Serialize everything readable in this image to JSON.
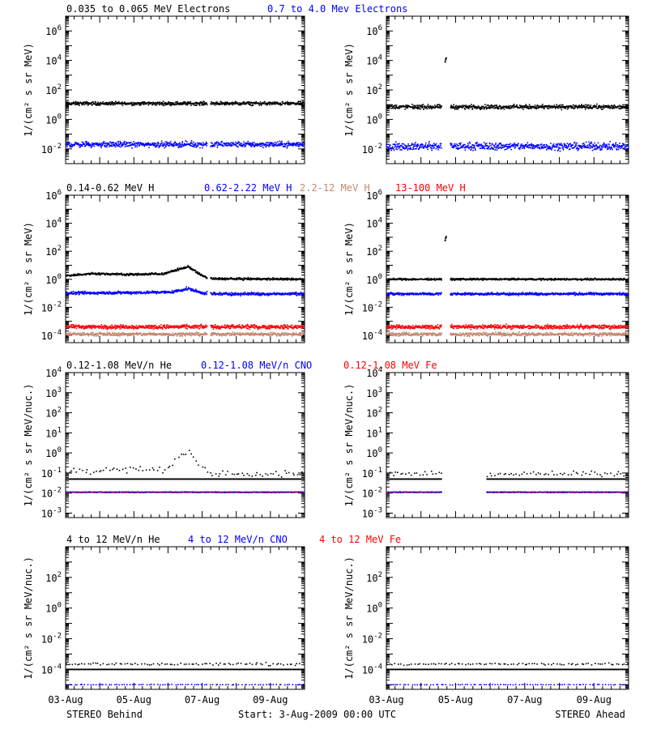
{
  "colors": {
    "black": "#000000",
    "blue": "#0000ff",
    "tan": "#c08a70",
    "red": "#ff0000"
  },
  "footer": {
    "left": "STEREO Behind",
    "center": "Start:  3-Aug-2009 00:00 UTC",
    "right": "STEREO Ahead"
  },
  "chart_data": [
    {
      "type": "scatter",
      "y_scale": "log",
      "ylabel": "1/(cm² s sr MeV)",
      "legend": [
        {
          "label": "0.035 to 0.065 MeV Electrons",
          "color": "#000000"
        },
        {
          "label": "0.7 to 4.0 Mev Electrons",
          "color": "#0000ff"
        }
      ],
      "ylim": [
        0.001,
        10000000
      ],
      "yticks": [
        {
          "base": "10",
          "exp": "6",
          "v": 1000000
        },
        {
          "base": "10",
          "exp": "4",
          "v": 10000
        },
        {
          "base": "10",
          "exp": "2",
          "v": 100
        },
        {
          "base": "10",
          "exp": "0",
          "v": 1
        },
        {
          "base": "10",
          "exp": "-2",
          "v": 0.01
        }
      ],
      "panels": [
        {
          "side": "STEREO Behind",
          "series": [
            {
              "name": "0.035 to 0.065 MeV Electrons",
              "color": "#000000",
              "y": 12,
              "spread": 1.4,
              "gaps": [
                [
                  4.15,
                  4.25
                ]
              ]
            },
            {
              "name": "0.7 to 4.0 Mev Electrons",
              "color": "#0000ff",
              "y": 0.02,
              "spread": 1.7,
              "gaps": [
                [
                  4.15,
                  4.25
                ]
              ]
            }
          ]
        },
        {
          "side": "STEREO Ahead",
          "series": [
            {
              "name": "0.035 to 0.065 MeV Electrons",
              "color": "#000000",
              "y": 7,
              "spread": 1.5,
              "gaps": [
                [
                  1.6,
                  1.85
                ]
              ],
              "spikes": [
                [
                  1.7,
                  8000
                ]
              ]
            },
            {
              "name": "0.7 to 4.0 Mev Electrons",
              "color": "#0000ff",
              "y": 0.015,
              "spread": 2.0,
              "gaps": [
                [
                  1.6,
                  1.85
                ]
              ]
            }
          ]
        }
      ]
    },
    {
      "type": "scatter",
      "y_scale": "log",
      "ylabel": "1/(cm² s sr MeV)",
      "legend": [
        {
          "label": "0.14-0.62 MeV H",
          "color": "#000000"
        },
        {
          "label": "0.62-2.22 MeV H",
          "color": "#0000ff"
        },
        {
          "label": "2.2-12 MeV H",
          "color": "#c08a70"
        },
        {
          "label": "13-100 MeV H",
          "color": "#ff0000"
        }
      ],
      "ylim": [
        3e-05,
        1000000
      ],
      "yticks": [
        {
          "base": "10",
          "exp": "6",
          "v": 1000000
        },
        {
          "base": "10",
          "exp": "4",
          "v": 10000
        },
        {
          "base": "10",
          "exp": "2",
          "v": 100
        },
        {
          "base": "10",
          "exp": "0",
          "v": 1
        },
        {
          "base": "10",
          "exp": "-2",
          "v": 0.01
        },
        {
          "base": "10",
          "exp": "-4",
          "v": 0.0001
        }
      ],
      "panels": [
        {
          "side": "STEREO Behind",
          "series": [
            {
              "name": "0.14-0.62 MeV H",
              "color": "#000000",
              "y": 1.1,
              "spread": 1.25,
              "gaps": [
                [
                  4.15,
                  4.25
                ]
              ],
              "trend": [
                [
                  0,
                  1.8
                ],
                [
                  0.8,
                  2.5
                ],
                [
                  2.0,
                  2.2
                ],
                [
                  2.9,
                  2.5
                ],
                [
                  3.3,
                  5
                ],
                [
                  3.6,
                  8
                ],
                [
                  3.9,
                  2.5
                ],
                [
                  4.2,
                  1.1
                ],
                [
                  7,
                  1.0
                ]
              ]
            },
            {
              "name": "0.62-2.22 MeV H",
              "color": "#0000ff",
              "y": 0.1,
              "spread": 1.35,
              "gaps": [
                [
                  4.15,
                  4.25
                ]
              ],
              "trend": [
                [
                  0,
                  0.1
                ],
                [
                  3.1,
                  0.12
                ],
                [
                  3.6,
                  0.22
                ],
                [
                  3.9,
                  0.12
                ],
                [
                  4.2,
                  0.09
                ],
                [
                  7,
                  0.09
                ]
              ]
            },
            {
              "name": "13-100 MeV H",
              "color": "#ff0000",
              "y": 0.0004,
              "spread": 1.5,
              "gaps": [
                [
                  4.15,
                  4.25
                ]
              ]
            },
            {
              "name": "2.2-12 MeV H",
              "color": "#c08a70",
              "y": 0.00012,
              "spread": 1.4,
              "gaps": [
                [
                  4.15,
                  4.25
                ]
              ]
            }
          ]
        },
        {
          "side": "STEREO Ahead",
          "series": [
            {
              "name": "0.14-0.62 MeV H",
              "color": "#000000",
              "y": 1.0,
              "spread": 1.2,
              "gaps": [
                [
                  1.6,
                  1.85
                ]
              ],
              "spikes": [
                [
                  1.7,
                  600
                ]
              ]
            },
            {
              "name": "0.62-2.22 MeV H",
              "color": "#0000ff",
              "y": 0.09,
              "spread": 1.3,
              "gaps": [
                [
                  1.6,
                  1.85
                ]
              ]
            },
            {
              "name": "13-100 MeV H",
              "color": "#ff0000",
              "y": 0.0004,
              "spread": 1.5,
              "gaps": [
                [
                  1.6,
                  1.85
                ]
              ]
            },
            {
              "name": "2.2-12 MeV H",
              "color": "#c08a70",
              "y": 0.00012,
              "spread": 1.4,
              "gaps": [
                [
                  1.6,
                  1.85
                ]
              ]
            }
          ]
        }
      ]
    },
    {
      "type": "scatter",
      "y_scale": "log",
      "ylabel": "1/(cm² s sr MeV/nuc.)",
      "legend": [
        {
          "label": "0.12-1.08 MeV/n He",
          "color": "#000000"
        },
        {
          "label": "0.12-1.08 MeV/n CNO",
          "color": "#0000ff"
        },
        {
          "label": "0.12-1.08 MeV Fe",
          "color": "#ff0000"
        }
      ],
      "ylim": [
        0.0006,
        10000
      ],
      "yticks": [
        {
          "base": "10",
          "exp": "4",
          "v": 10000
        },
        {
          "base": "10",
          "exp": "3",
          "v": 1000
        },
        {
          "base": "10",
          "exp": "2",
          "v": 100
        },
        {
          "base": "10",
          "exp": "1",
          "v": 10
        },
        {
          "base": "10",
          "exp": "0",
          "v": 1
        },
        {
          "base": "10",
          "exp": "-1",
          "v": 0.1
        },
        {
          "base": "10",
          "exp": "-2",
          "v": 0.01
        },
        {
          "base": "10",
          "exp": "-3",
          "v": 0.001
        }
      ],
      "panels": [
        {
          "side": "STEREO Behind",
          "series": [
            {
              "name": "0.12-1.08 MeV/n He",
              "color": "#000000",
              "y": 0.05,
              "spread": 1.0,
              "gaps": []
            },
            {
              "name": "0.12-1.08 MeV/n He",
              "color": "#000000",
              "y": 0.09,
              "spread": 1.6,
              "gaps": [],
              "sparse": true,
              "trend": [
                [
                  0,
                  0.13
                ],
                [
                  2.9,
                  0.15
                ],
                [
                  3.3,
                  0.6
                ],
                [
                  3.6,
                  1.5
                ],
                [
                  3.9,
                  0.2
                ],
                [
                  4.3,
                  0.09
                ],
                [
                  7,
                  0.09
                ]
              ]
            },
            {
              "name": "0.12-1.08 MeV/n CNO",
              "color": "#0000ff",
              "y": 0.011,
              "spread": 1.05,
              "gaps": []
            },
            {
              "name": "0.12-1.08 MeV Fe",
              "color": "#ff0000",
              "y": 0.011,
              "spread": 1.05,
              "gaps": [],
              "sparse": true
            }
          ]
        },
        {
          "side": "STEREO Ahead",
          "series": [
            {
              "name": "0.12-1.08 MeV/n He",
              "color": "#000000",
              "y": 0.05,
              "spread": 1.0,
              "gaps": [
                [
                  1.6,
                  2.9
                ]
              ]
            },
            {
              "name": "0.12-1.08 MeV/n He",
              "color": "#000000",
              "y": 0.09,
              "spread": 1.4,
              "gaps": [
                [
                  1.6,
                  2.9
                ]
              ],
              "sparse": true
            },
            {
              "name": "0.12-1.08 MeV/n CNO",
              "color": "#0000ff",
              "y": 0.011,
              "spread": 1.05,
              "gaps": [
                [
                  1.6,
                  2.9
                ]
              ]
            },
            {
              "name": "0.12-1.08 MeV Fe",
              "color": "#ff0000",
              "y": 0.011,
              "spread": 1.05,
              "gaps": [
                [
                  1.6,
                  2.9
                ]
              ],
              "sparse": true
            }
          ]
        }
      ]
    },
    {
      "type": "scatter",
      "y_scale": "log",
      "ylabel": "1/(cm² s sr MeV/nuc.)",
      "legend": [
        {
          "label": "4 to 12 MeV/n He",
          "color": "#000000"
        },
        {
          "label": "4 to 12 MeV/n CNO",
          "color": "#0000ff"
        },
        {
          "label": "4 to 12 MeV Fe",
          "color": "#ff0000"
        }
      ],
      "ylim": [
        5e-06,
        10000
      ],
      "yticks": [
        {
          "base": "10",
          "exp": "2",
          "v": 100
        },
        {
          "base": "10",
          "exp": "0",
          "v": 1
        },
        {
          "base": "10",
          "exp": "-2",
          "v": 0.01
        },
        {
          "base": "10",
          "exp": "-4",
          "v": 0.0001
        }
      ],
      "panels": [
        {
          "side": "STEREO Behind",
          "series": [
            {
              "name": "4 to 12 MeV/n He",
              "color": "#000000",
              "y": 0.0001,
              "spread": 1.0,
              "gaps": []
            },
            {
              "name": "4 to 12 MeV/n He",
              "color": "#000000",
              "y": 0.00022,
              "spread": 1.3,
              "gaps": [],
              "sparse": true
            },
            {
              "name": "4 to 12 MeV/n CNO",
              "color": "#0000ff",
              "y": 1e-05,
              "spread": 1.05,
              "gaps": [],
              "sparse": true
            }
          ]
        },
        {
          "side": "STEREO Ahead",
          "series": [
            {
              "name": "4 to 12 MeV/n He",
              "color": "#000000",
              "y": 0.0001,
              "spread": 1.0,
              "gaps": []
            },
            {
              "name": "4 to 12 MeV/n He",
              "color": "#000000",
              "y": 0.00022,
              "spread": 1.2,
              "gaps": [],
              "sparse": true
            },
            {
              "name": "4 to 12 MeV/n CNO",
              "color": "#0000ff",
              "y": 1e-05,
              "spread": 1.05,
              "gaps": [],
              "sparse": true
            }
          ]
        }
      ]
    }
  ],
  "x_axis": {
    "range_days": [
      0,
      7
    ],
    "ticks": [
      {
        "label": "03-Aug",
        "day": 0
      },
      {
        "label": "05-Aug",
        "day": 2
      },
      {
        "label": "07-Aug",
        "day": 4
      },
      {
        "label": "09-Aug",
        "day": 6
      }
    ]
  }
}
